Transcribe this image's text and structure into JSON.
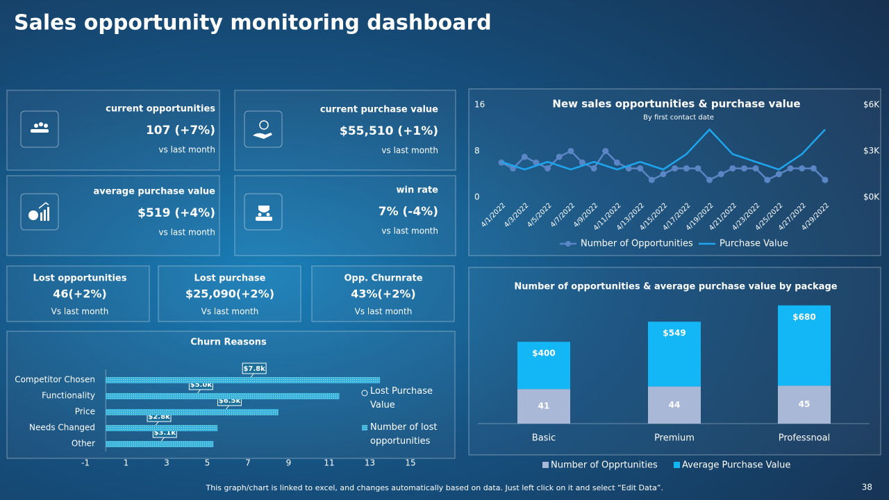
{
  "title": "Sales opportunity monitoring dashboard",
  "kpis": [
    {
      "label": "current opportunities",
      "value": "107 (+7%)",
      "note": "vs last month"
    },
    {
      "label": "current purchase value",
      "value": "$55,510 (+1%)",
      "note": "vs last month"
    },
    {
      "label": "average purchase value",
      "value": "$519 (+4%)",
      "note": "vs last month"
    },
    {
      "label": "win rate",
      "value": "7% (-4%)",
      "note": "vs last month"
    }
  ],
  "summary": [
    {
      "label": "Lost opportunities",
      "value": "46(+2%)",
      "note": "Vs last month"
    },
    {
      "label": "Lost purchase",
      "value": "$25,090(+2%)",
      "note": "Vs last month"
    },
    {
      "label": "Opp. Churnrate",
      "value": "43%(+2%)",
      "note": "Vs last month"
    }
  ],
  "chart_data": [
    {
      "type": "line",
      "title": "New sales opportunities & purchase value",
      "subtitle": "By first contact date",
      "categories": [
        "4/1/2022",
        null,
        "4/3/2022",
        null,
        "4/5/2022",
        null,
        "4/7/2022",
        null,
        "4/9/2022",
        null,
        "4/11/2022",
        null,
        "4/13/2022",
        null,
        "4/15/2022",
        null,
        "4/17/2022",
        null,
        "4/19/2022",
        null,
        "4/21/2022",
        null,
        "4/23/2022",
        null,
        "4/25/2022",
        null,
        "4/27/2022",
        null,
        "4/29/2022"
      ],
      "series": [
        {
          "name": "Number of Opportunities",
          "color": "#5b86c5",
          "marker": "circle",
          "values": [
            6,
            5,
            7,
            6,
            5,
            7,
            8,
            6,
            5,
            8,
            6,
            5,
            5,
            3,
            4,
            5,
            5,
            5,
            3,
            4,
            5,
            5,
            5,
            3,
            4,
            5,
            5,
            5,
            3
          ]
        },
        {
          "name": "Purchase Value",
          "color": "#1ea7f0",
          "axis": "y2",
          "values": [
            2300,
            2050,
            1800,
            2050,
            2300,
            2050,
            1800,
            2050,
            2300,
            2050,
            1800,
            2050,
            2300,
            2050,
            1800,
            2300,
            2800,
            3600,
            4400,
            3600,
            2800,
            2550,
            2300,
            2050,
            1800,
            2300,
            2800,
            3600,
            4400
          ]
        }
      ],
      "ylim": [
        0,
        16
      ],
      "yticks": [
        0,
        8,
        16
      ],
      "y2lim": [
        0,
        6000
      ],
      "y2ticks": [
        {
          "value": 0,
          "label": "$0K"
        },
        {
          "value": 3000,
          "label": "$3K"
        },
        {
          "value": 6000,
          "label": "$6K"
        }
      ],
      "legend": "bottom"
    },
    {
      "type": "stacked-bar",
      "title": "Number of opportunities & average purchase value by package",
      "categories": [
        "Basic",
        "Premium",
        "Professnoal"
      ],
      "series": [
        {
          "name": "Number of Opprtunities",
          "color": "#a9b8d6",
          "values": [
            41,
            44,
            45
          ]
        },
        {
          "name": "Average Purchase Value",
          "color": "#14b7f5",
          "axis": "y2",
          "values": [
            400,
            549,
            680
          ],
          "value_labels": [
            "$400",
            "$549",
            "$680"
          ]
        }
      ],
      "ylim": [
        0,
        140
      ],
      "y2lim": [
        0,
        1000
      ],
      "legend": "bottom"
    },
    {
      "type": "hbar",
      "title": "Churn Reasons",
      "categories": [
        "Competitor Chosen",
        "Functionality",
        "Price",
        "Needs Changed",
        "Other"
      ],
      "series": [
        {
          "name": "Lost Purchase Value",
          "color": "#ffffff",
          "axis": "x2",
          "values": [
            7800,
            5000,
            6500,
            2800,
            3100
          ],
          "value_labels": [
            "$7.8k",
            "$5.0k",
            "$6.5k",
            "$2.8k",
            "$3.1k"
          ]
        },
        {
          "name": "Number of lost opportunities",
          "color": "#3fb5d9",
          "values": [
            13.5,
            11.5,
            8.5,
            5.5,
            5.3
          ]
        }
      ],
      "xlim": [
        -1,
        15
      ],
      "xticks": [
        -1,
        1,
        3,
        5,
        7,
        9,
        11,
        13,
        15
      ],
      "x2lim": [
        0,
        16000
      ],
      "legend": "right"
    }
  ],
  "footer": "This graph/chart is linked to excel, and changes automatically based on data. Just left click on it and select “Edit Data”.",
  "page_number": 38
}
